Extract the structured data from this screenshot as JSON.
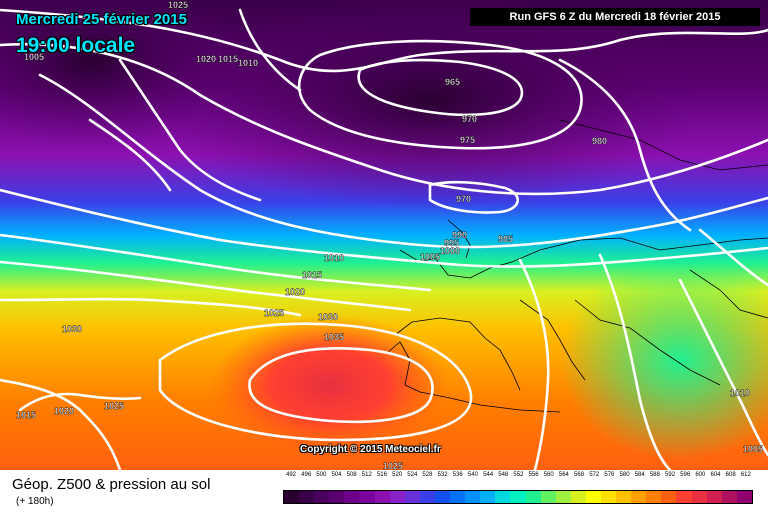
{
  "header": {
    "date": "Mercredi 25 février 2015",
    "time": "19:00 locale",
    "run": "Run GFS 6 Z du Mercredi 18 février 2015"
  },
  "footer": {
    "title": "Géop. Z500 & pression au sol",
    "subtitle": "(+ 180h)",
    "copyright": "Copyright © 2015 Meteociel.fr"
  },
  "isobar_labels": [
    "1025",
    "1005",
    "1020",
    "1015",
    "1010",
    "965",
    "970",
    "975",
    "980",
    "970",
    "990",
    "995",
    "1000",
    "985",
    "1005",
    "1010",
    "1015",
    "1020",
    "1025",
    "1030",
    "1035",
    "1030",
    "1015",
    "1020",
    "1025",
    "1010",
    "1005",
    "1025"
  ],
  "scale": {
    "labels": [
      "492",
      "496",
      "500",
      "504",
      "508",
      "512",
      "516",
      "520",
      "524",
      "528",
      "532",
      "536",
      "540",
      "544",
      "548",
      "552",
      "556",
      "560",
      "564",
      "568",
      "572",
      "576",
      "580",
      "584",
      "588",
      "592",
      "596",
      "600",
      "604",
      "608",
      "612"
    ],
    "colors": [
      "#2a0030",
      "#3a0048",
      "#4a005e",
      "#5a0072",
      "#6c0088",
      "#7c009c",
      "#8c10b0",
      "#8a20c8",
      "#6830d8",
      "#3a40e8",
      "#1450f0",
      "#0070ff",
      "#0090ff",
      "#00b0ff",
      "#00d8e0",
      "#00f0c0",
      "#20f090",
      "#60f060",
      "#a0f040",
      "#d8f020",
      "#ffff00",
      "#ffe000",
      "#ffc000",
      "#ffa000",
      "#ff8000",
      "#ff6010",
      "#ff4030",
      "#e83040",
      "#d02050",
      "#b01060",
      "#900070"
    ]
  }
}
